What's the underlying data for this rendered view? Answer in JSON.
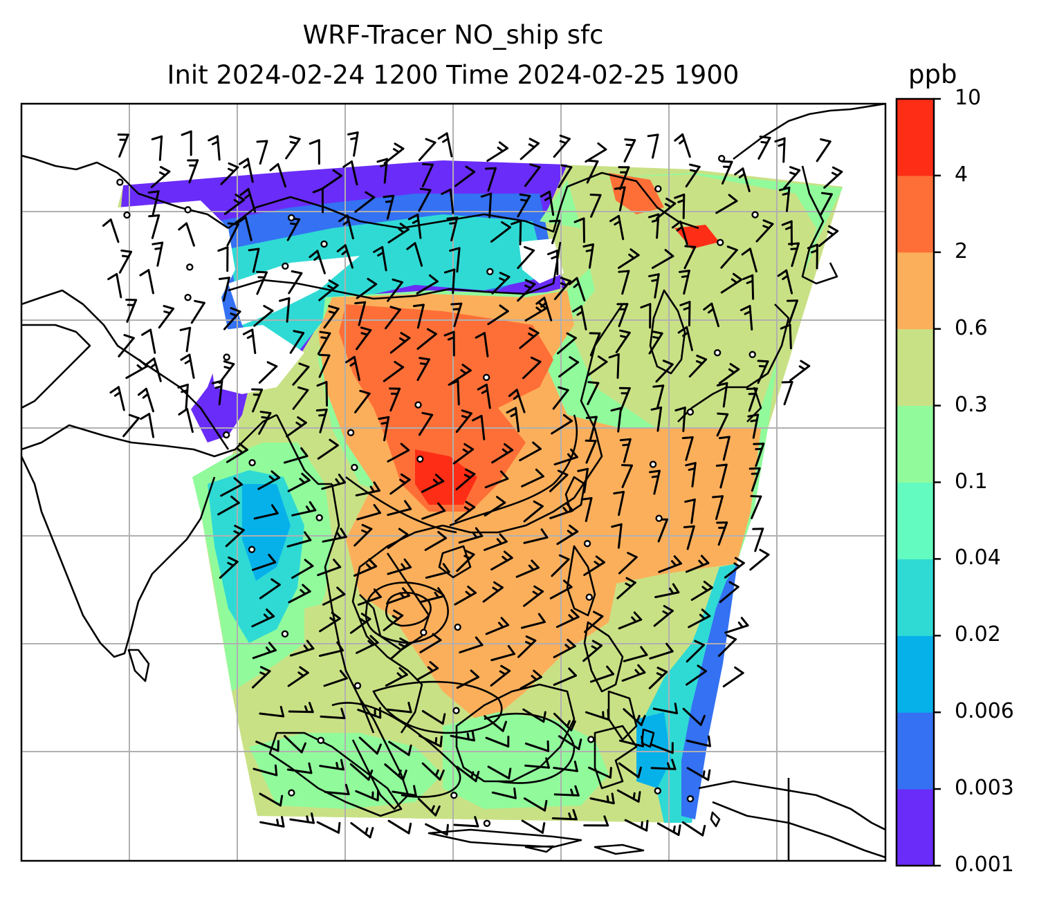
{
  "title": {
    "line1": "WRF-Tracer NO_ship sfc",
    "line2": "Init 2024-02-24 1200 Time 2024-02-25 1900"
  },
  "colorbar": {
    "unit": "ppb",
    "ticks": [
      "0.001",
      "0.003",
      "0.006",
      "0.02",
      "0.04",
      "0.1",
      "0.3",
      "0.6",
      "2",
      "4",
      "10"
    ],
    "colors": [
      "#6a2cf8",
      "#3471f3",
      "#06b1ea",
      "#2fdad4",
      "#63fbbf",
      "#91fb9c",
      "#c9e185",
      "#fcaf5b",
      "#fe6f37",
      "#fe2d16"
    ]
  },
  "map": {
    "gridlines": true,
    "coastline_color": "#000000",
    "wind_barbs": true,
    "contours": true
  }
}
